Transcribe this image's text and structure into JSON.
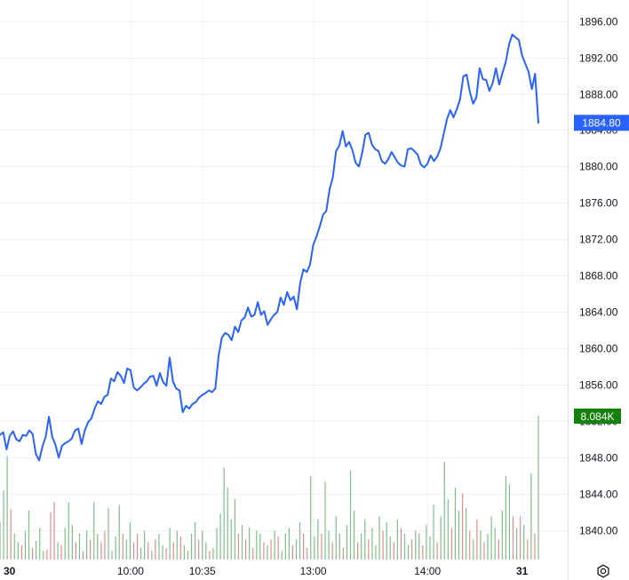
{
  "chart_data": {
    "type": "line",
    "title": "",
    "xlabel": "",
    "ylabel": "",
    "ylim": [
      1836.8,
      1898.3
    ],
    "y_ticks": [
      1840,
      1844,
      1848,
      1852,
      1856,
      1860,
      1864,
      1868,
      1872,
      1876,
      1880,
      1884,
      1888,
      1892,
      1896
    ],
    "y_tick_labels": [
      "1840.00",
      "1844.00",
      "1848.00",
      "1852.00",
      "1856.00",
      "1860.00",
      "1864.00",
      "1868.00",
      "1872.00",
      "1876.00",
      "1880.00",
      "1884.00",
      "1888.00",
      "1892.00",
      "1896.00"
    ],
    "x_ticks": [
      {
        "label": "30",
        "bold": true,
        "index": 0
      },
      {
        "label": "10:00",
        "bold": false,
        "index": 40
      },
      {
        "label": "10:35",
        "bold": false,
        "index": 62
      },
      {
        "label": "13:00",
        "bold": false,
        "index": 96
      },
      {
        "label": "14:00",
        "bold": false,
        "index": 131
      },
      {
        "label": "31",
        "bold": true,
        "index": 160
      }
    ],
    "grid": true,
    "series": [
      {
        "values": [
          1850.5,
          1850.8,
          1848.9,
          1850.4,
          1850.9,
          1850.0,
          1849.8,
          1850.5,
          1850.4,
          1851.0,
          1850.6,
          1848.4,
          1847.7,
          1849.2,
          1850.3,
          1852.5,
          1850.3,
          1849.4,
          1848.0,
          1849.3,
          1849.6,
          1849.8,
          1850.1,
          1851.0,
          1851.2,
          1849.5,
          1851.0,
          1851.9,
          1852.3,
          1853.4,
          1854.2,
          1853.9,
          1854.7,
          1854.9,
          1856.7,
          1856.4,
          1857.4,
          1857.0,
          1856.2,
          1857.8,
          1857.6,
          1855.7,
          1855.4,
          1855.7,
          1856.1,
          1856.4,
          1856.9,
          1857.0,
          1855.9,
          1857.3,
          1856.3,
          1855.9,
          1859.0,
          1856.4,
          1855.6,
          1855.4,
          1853.0,
          1853.7,
          1853.4,
          1853.9,
          1854.1,
          1854.6,
          1854.9,
          1855.1,
          1855.4,
          1855.2,
          1855.6,
          1859.2,
          1861.2,
          1861.7,
          1861.5,
          1860.9,
          1862.4,
          1861.8,
          1863.1,
          1863.4,
          1864.5,
          1863.5,
          1863.7,
          1865.1,
          1863.7,
          1864.1,
          1862.6,
          1863.2,
          1863.7,
          1864.0,
          1865.6,
          1864.8,
          1866.2,
          1865.3,
          1865.7,
          1864.3,
          1867.2,
          1868.7,
          1868.4,
          1869.2,
          1871.4,
          1872.3,
          1873.4,
          1874.7,
          1875.1,
          1877.5,
          1878.8,
          1881.7,
          1882.3,
          1883.9,
          1882.2,
          1882.7,
          1881.8,
          1880.4,
          1880.0,
          1881.5,
          1883.5,
          1883.7,
          1882.4,
          1881.9,
          1881.7,
          1880.6,
          1880.3,
          1880.8,
          1881.6,
          1881.0,
          1880.4,
          1880.1,
          1880.0,
          1881.9,
          1882.0,
          1881.7,
          1881.3,
          1880.2,
          1879.9,
          1880.3,
          1881.2,
          1880.6,
          1881.1,
          1882.0,
          1883.6,
          1885.2,
          1886.2,
          1885.4,
          1886.3,
          1887.4,
          1889.9,
          1890.1,
          1888.2,
          1886.9,
          1887.6,
          1890.8,
          1889.6,
          1889.5,
          1888.3,
          1889.2,
          1890.8,
          1889.0,
          1890.3,
          1891.5,
          1893.4,
          1894.5,
          1894.2,
          1893.9,
          1892.2,
          1891.3,
          1890.4,
          1888.5,
          1890.2,
          1884.8
        ]
      }
    ],
    "last_value_label": "1884.80",
    "volume": {
      "last_label": "8.084K",
      "up_color": "#7fbf87",
      "down_color": "#e38c8c",
      "bars": [
        {
          "v": 0.26,
          "up": true
        },
        {
          "v": 0.48,
          "up": true
        },
        {
          "v": 0.72,
          "up": true
        },
        {
          "v": 0.35,
          "up": false
        },
        {
          "v": 0.18,
          "up": true
        },
        {
          "v": 0.12,
          "up": true
        },
        {
          "v": 0.1,
          "up": false
        },
        {
          "v": 0.2,
          "up": true
        },
        {
          "v": 0.34,
          "up": true
        },
        {
          "v": 0.08,
          "up": false
        },
        {
          "v": 0.13,
          "up": true
        },
        {
          "v": 0.22,
          "up": true
        },
        {
          "v": 0.06,
          "up": true
        },
        {
          "v": 0.07,
          "up": false
        },
        {
          "v": 0.33,
          "up": false
        },
        {
          "v": 0.4,
          "up": false
        },
        {
          "v": 0.12,
          "up": true
        },
        {
          "v": 0.1,
          "up": false
        },
        {
          "v": 0.22,
          "up": true
        },
        {
          "v": 0.4,
          "up": true
        },
        {
          "v": 0.24,
          "up": true
        },
        {
          "v": 0.12,
          "up": false
        },
        {
          "v": 0.18,
          "up": true
        },
        {
          "v": 0.06,
          "up": false
        },
        {
          "v": 0.2,
          "up": true
        },
        {
          "v": 0.14,
          "up": false
        },
        {
          "v": 0.4,
          "up": true
        },
        {
          "v": 0.18,
          "up": true
        },
        {
          "v": 0.12,
          "up": false
        },
        {
          "v": 0.2,
          "up": false
        },
        {
          "v": 0.36,
          "up": true
        },
        {
          "v": 0.06,
          "up": true
        },
        {
          "v": 0.16,
          "up": true
        },
        {
          "v": 0.38,
          "up": true
        },
        {
          "v": 0.18,
          "up": false
        },
        {
          "v": 0.14,
          "up": true
        },
        {
          "v": 0.26,
          "up": true
        },
        {
          "v": 0.12,
          "up": false
        },
        {
          "v": 0.18,
          "up": false
        },
        {
          "v": 0.08,
          "up": true
        },
        {
          "v": 0.2,
          "up": true
        },
        {
          "v": 0.12,
          "up": false
        },
        {
          "v": 0.06,
          "up": true
        },
        {
          "v": 0.14,
          "up": false
        },
        {
          "v": 0.18,
          "up": true
        },
        {
          "v": 0.1,
          "up": true
        },
        {
          "v": 0.08,
          "up": false
        },
        {
          "v": 0.22,
          "up": true
        },
        {
          "v": 0.12,
          "up": false
        },
        {
          "v": 0.2,
          "up": true
        },
        {
          "v": 0.16,
          "up": false
        },
        {
          "v": 0.1,
          "up": true
        },
        {
          "v": 0.06,
          "up": true
        },
        {
          "v": 0.18,
          "up": true
        },
        {
          "v": 0.26,
          "up": true
        },
        {
          "v": 0.14,
          "up": false
        },
        {
          "v": 0.2,
          "up": true
        },
        {
          "v": 0.12,
          "up": true
        },
        {
          "v": 0.06,
          "up": false
        },
        {
          "v": 0.08,
          "up": true
        },
        {
          "v": 0.22,
          "up": true
        },
        {
          "v": 0.32,
          "up": true
        },
        {
          "v": 0.64,
          "up": true
        },
        {
          "v": 0.5,
          "up": true
        },
        {
          "v": 0.28,
          "up": true
        },
        {
          "v": 0.42,
          "up": true
        },
        {
          "v": 0.18,
          "up": false
        },
        {
          "v": 0.24,
          "up": true
        },
        {
          "v": 0.14,
          "up": false
        },
        {
          "v": 0.22,
          "up": true
        },
        {
          "v": 0.08,
          "up": false
        },
        {
          "v": 0.2,
          "up": true
        },
        {
          "v": 0.18,
          "up": true
        },
        {
          "v": 0.12,
          "up": false
        },
        {
          "v": 0.1,
          "up": true
        },
        {
          "v": 0.14,
          "up": false
        },
        {
          "v": 0.2,
          "up": true
        },
        {
          "v": 0.16,
          "up": false
        },
        {
          "v": 0.06,
          "up": true
        },
        {
          "v": 0.18,
          "up": true
        },
        {
          "v": 0.22,
          "up": true
        },
        {
          "v": 0.1,
          "up": false
        },
        {
          "v": 0.14,
          "up": true
        },
        {
          "v": 0.26,
          "up": true
        },
        {
          "v": 0.18,
          "up": false
        },
        {
          "v": 0.08,
          "up": false
        },
        {
          "v": 0.58,
          "up": true
        },
        {
          "v": 0.16,
          "up": true
        },
        {
          "v": 0.28,
          "up": true
        },
        {
          "v": 0.18,
          "up": false
        },
        {
          "v": 0.54,
          "up": true
        },
        {
          "v": 0.2,
          "up": true
        },
        {
          "v": 0.12,
          "up": false
        },
        {
          "v": 0.3,
          "up": true
        },
        {
          "v": 0.18,
          "up": true
        },
        {
          "v": 0.08,
          "up": false
        },
        {
          "v": 0.24,
          "up": true
        },
        {
          "v": 0.62,
          "up": true
        },
        {
          "v": 0.34,
          "up": true
        },
        {
          "v": 0.12,
          "up": false
        },
        {
          "v": 0.18,
          "up": true
        },
        {
          "v": 0.28,
          "up": true
        },
        {
          "v": 0.14,
          "up": false
        },
        {
          "v": 0.22,
          "up": true
        },
        {
          "v": 0.1,
          "up": true
        },
        {
          "v": 0.3,
          "up": true
        },
        {
          "v": 0.2,
          "up": false
        },
        {
          "v": 0.26,
          "up": true
        },
        {
          "v": 0.16,
          "up": true
        },
        {
          "v": 0.12,
          "up": false
        },
        {
          "v": 0.28,
          "up": true
        },
        {
          "v": 0.22,
          "up": false
        },
        {
          "v": 0.18,
          "up": true
        },
        {
          "v": 0.1,
          "up": true
        },
        {
          "v": 0.14,
          "up": false
        },
        {
          "v": 0.2,
          "up": true
        },
        {
          "v": 0.18,
          "up": true
        },
        {
          "v": 0.1,
          "up": false
        },
        {
          "v": 0.24,
          "up": true
        },
        {
          "v": 0.16,
          "up": true
        },
        {
          "v": 0.38,
          "up": true
        },
        {
          "v": 0.12,
          "up": false
        },
        {
          "v": 0.3,
          "up": true
        },
        {
          "v": 0.68,
          "up": true
        },
        {
          "v": 0.42,
          "up": true
        },
        {
          "v": 0.22,
          "up": false
        },
        {
          "v": 0.5,
          "up": true
        },
        {
          "v": 0.34,
          "up": true
        },
        {
          "v": 0.46,
          "up": false
        },
        {
          "v": 0.36,
          "up": true
        },
        {
          "v": 0.2,
          "up": false
        },
        {
          "v": 0.14,
          "up": true
        },
        {
          "v": 0.28,
          "up": false
        },
        {
          "v": 0.2,
          "up": true
        },
        {
          "v": 0.12,
          "up": false
        },
        {
          "v": 0.18,
          "up": true
        },
        {
          "v": 0.3,
          "up": true
        },
        {
          "v": 0.22,
          "up": true
        },
        {
          "v": 0.14,
          "up": false
        },
        {
          "v": 0.34,
          "up": true
        },
        {
          "v": 0.58,
          "up": true
        },
        {
          "v": 0.52,
          "up": true
        },
        {
          "v": 0.3,
          "up": false
        },
        {
          "v": 0.22,
          "up": true
        },
        {
          "v": 0.3,
          "up": false
        },
        {
          "v": 0.24,
          "up": true
        },
        {
          "v": 0.14,
          "up": false
        },
        {
          "v": 0.6,
          "up": true
        },
        {
          "v": 0.18,
          "up": false
        },
        {
          "v": 1.0,
          "up": true
        }
      ]
    }
  },
  "colors": {
    "line": "#2962ff",
    "grid": "#f0f3fa",
    "text": "#131722",
    "last_value_bg": "#2962ff",
    "volume_label_bg": "#15810d"
  },
  "icons": {
    "settings": "gear-icon"
  }
}
